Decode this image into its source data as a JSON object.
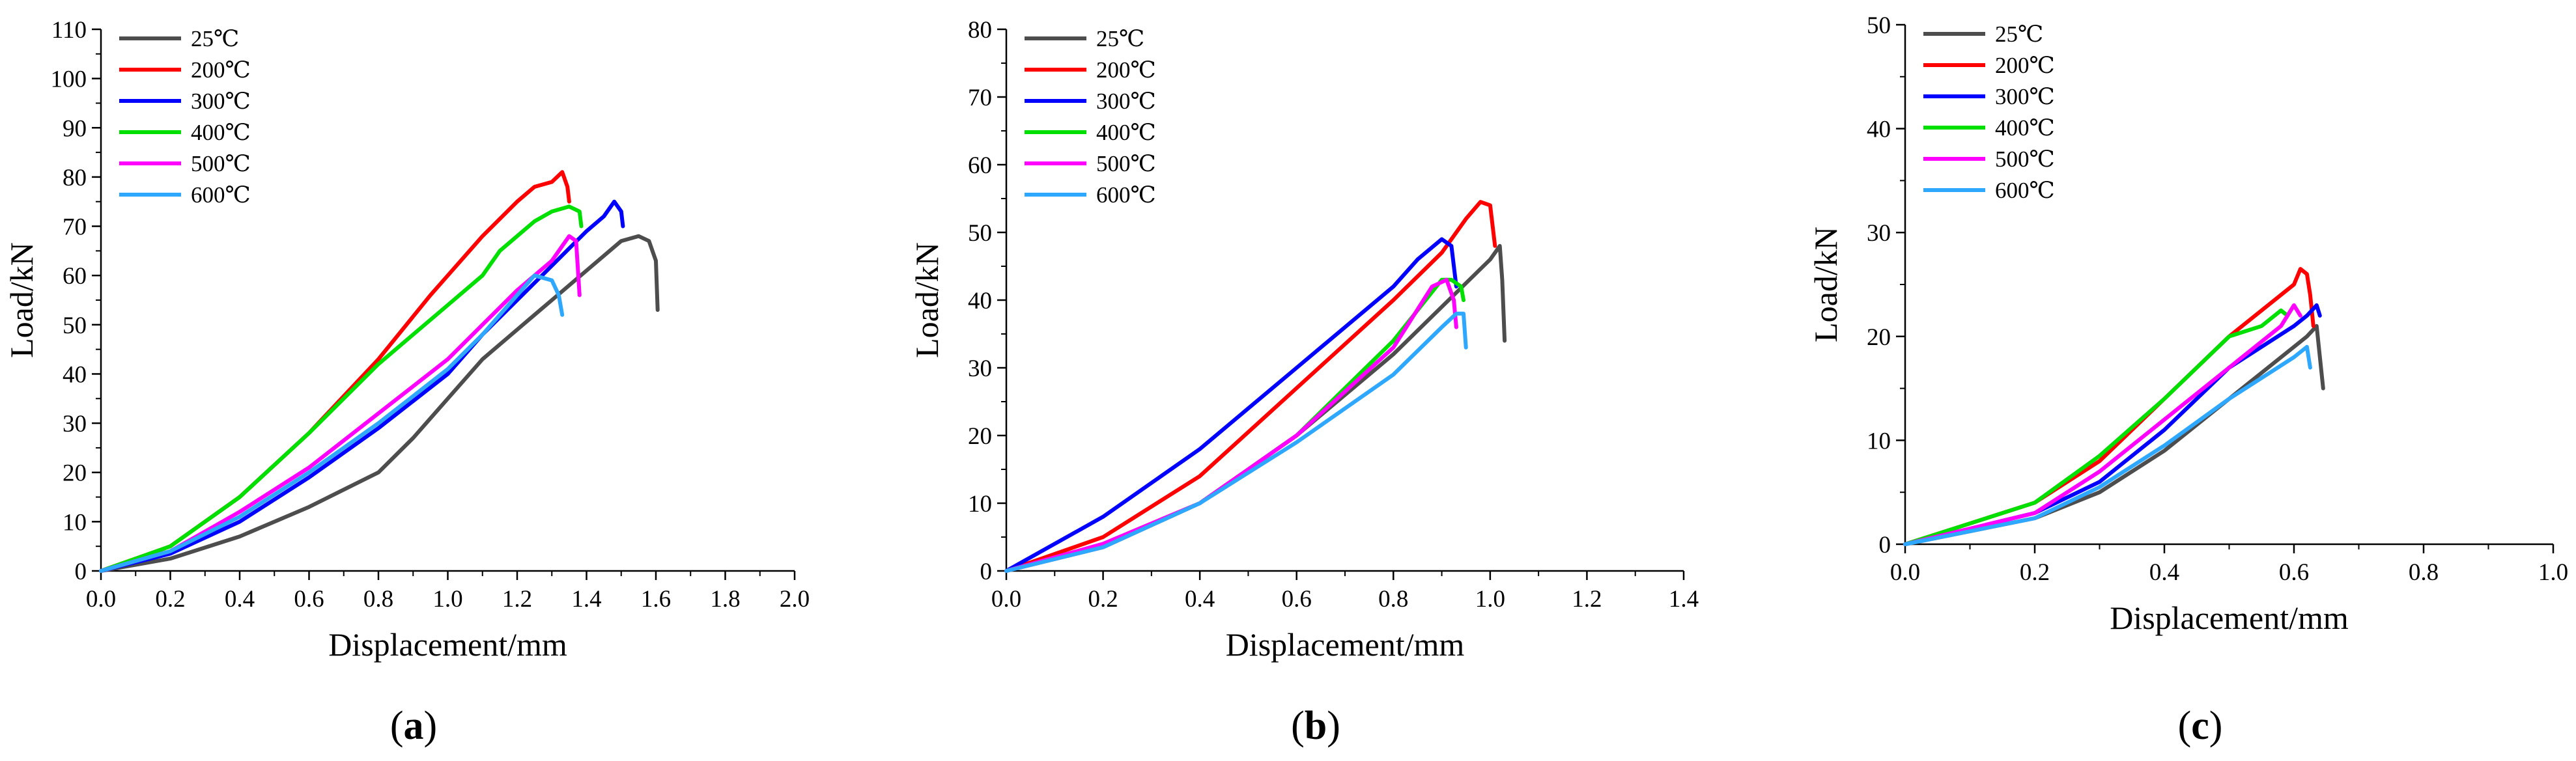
{
  "chart_data": [
    {
      "type": "line",
      "panel_label": "a",
      "xlabel": "Displacement/mm",
      "ylabel": "Load/kN",
      "xlim": [
        0,
        2.0
      ],
      "ylim": [
        0,
        110
      ],
      "xticks": [
        "0.0",
        "0.2",
        "0.4",
        "0.6",
        "0.8",
        "1.0",
        "1.2",
        "1.4",
        "1.6",
        "1.8",
        "2.0"
      ],
      "yticks": [
        "0",
        "10",
        "20",
        "30",
        "40",
        "50",
        "60",
        "70",
        "80",
        "90",
        "100",
        "110"
      ],
      "legend_position": "top-left",
      "series": [
        {
          "name": "25℃",
          "color": "#4d4d4d",
          "x": [
            0,
            0.2,
            0.4,
            0.6,
            0.8,
            0.9,
            1.0,
            1.1,
            1.2,
            1.25,
            1.3,
            1.4,
            1.5,
            1.55,
            1.58,
            1.6,
            1.605
          ],
          "y": [
            0,
            2.5,
            7,
            13,
            20,
            27,
            35,
            43,
            49,
            52,
            55,
            61,
            67,
            68,
            67,
            63,
            53
          ]
        },
        {
          "name": "200℃",
          "color": "#ff0000",
          "x": [
            0,
            0.2,
            0.4,
            0.6,
            0.8,
            0.95,
            1.0,
            1.1,
            1.2,
            1.25,
            1.3,
            1.33,
            1.345,
            1.35
          ],
          "y": [
            0,
            5,
            15,
            28,
            43,
            56,
            60,
            68,
            75,
            78,
            79,
            81,
            78,
            75
          ]
        },
        {
          "name": "300℃",
          "color": "#0000ff",
          "x": [
            0,
            0.2,
            0.4,
            0.6,
            0.8,
            1.0,
            1.1,
            1.2,
            1.3,
            1.4,
            1.45,
            1.48,
            1.5,
            1.505
          ],
          "y": [
            0,
            3.5,
            10,
            19,
            29,
            40,
            48,
            55,
            62,
            69,
            72,
            75,
            73,
            70
          ]
        },
        {
          "name": "400℃",
          "color": "#00e000",
          "x": [
            0,
            0.2,
            0.4,
            0.6,
            0.8,
            1.0,
            1.1,
            1.15,
            1.2,
            1.25,
            1.3,
            1.35,
            1.38,
            1.385
          ],
          "y": [
            0,
            5,
            15,
            28,
            42,
            54,
            60,
            65,
            68,
            71,
            73,
            74,
            73,
            70
          ]
        },
        {
          "name": "500℃",
          "color": "#ff00ff",
          "x": [
            0,
            0.2,
            0.4,
            0.6,
            0.8,
            1.0,
            1.1,
            1.2,
            1.3,
            1.35,
            1.37,
            1.38
          ],
          "y": [
            0,
            4,
            12,
            21,
            32,
            43,
            50,
            57,
            63,
            68,
            67,
            56
          ]
        },
        {
          "name": "600℃",
          "color": "#2ea8ff",
          "x": [
            0,
            0.2,
            0.4,
            0.6,
            0.8,
            1.0,
            1.1,
            1.2,
            1.25,
            1.3,
            1.32,
            1.33
          ],
          "y": [
            0,
            4,
            11,
            20,
            30,
            41,
            48,
            56,
            60,
            59,
            56,
            52
          ]
        }
      ]
    },
    {
      "type": "line",
      "panel_label": "b",
      "xlabel": "Displacement/mm",
      "ylabel": "Load/kN",
      "xlim": [
        0,
        1.4
      ],
      "ylim": [
        0,
        80
      ],
      "xticks": [
        "0.0",
        "0.2",
        "0.4",
        "0.6",
        "0.8",
        "1.0",
        "1.2",
        "1.4"
      ],
      "yticks": [
        "0",
        "10",
        "20",
        "30",
        "40",
        "50",
        "60",
        "70",
        "80"
      ],
      "legend_position": "top-left",
      "series": [
        {
          "name": "25℃",
          "color": "#4d4d4d",
          "x": [
            0,
            0.2,
            0.4,
            0.6,
            0.8,
            0.9,
            1.0,
            1.02,
            1.025,
            1.03
          ],
          "y": [
            0,
            3.5,
            10,
            20,
            32,
            39,
            46,
            48,
            43,
            34
          ]
        },
        {
          "name": "200℃",
          "color": "#ff0000",
          "x": [
            0,
            0.2,
            0.4,
            0.6,
            0.8,
            0.9,
            0.95,
            0.98,
            1.0,
            1.01
          ],
          "y": [
            0,
            5,
            14,
            27,
            40,
            47,
            52,
            54.5,
            54,
            48
          ]
        },
        {
          "name": "300℃",
          "color": "#0000ff",
          "x": [
            0,
            0.2,
            0.4,
            0.6,
            0.8,
            0.85,
            0.9,
            0.92,
            0.93
          ],
          "y": [
            0,
            8,
            18,
            30,
            42,
            46,
            49,
            48,
            42
          ]
        },
        {
          "name": "400℃",
          "color": "#00e000",
          "x": [
            0,
            0.2,
            0.4,
            0.6,
            0.8,
            0.9,
            0.92,
            0.94,
            0.945
          ],
          "y": [
            0,
            4,
            10,
            20,
            34,
            43,
            43,
            42,
            40
          ]
        },
        {
          "name": "500℃",
          "color": "#ff00ff",
          "x": [
            0,
            0.2,
            0.4,
            0.6,
            0.8,
            0.88,
            0.91,
            0.925,
            0.93
          ],
          "y": [
            0,
            4,
            10,
            20,
            33,
            42,
            43,
            40,
            36
          ]
        },
        {
          "name": "600℃",
          "color": "#2ea8ff",
          "x": [
            0,
            0.2,
            0.4,
            0.6,
            0.8,
            0.9,
            0.93,
            0.945,
            0.95
          ],
          "y": [
            0,
            3.5,
            10,
            19,
            29,
            36,
            38,
            38,
            33
          ]
        }
      ]
    },
    {
      "type": "line",
      "panel_label": "c",
      "xlabel": "Displacement/mm",
      "ylabel": "Load/kN",
      "xlim": [
        0,
        1.0
      ],
      "ylim": [
        0,
        50
      ],
      "xticks": [
        "0.0",
        "0.2",
        "0.4",
        "0.6",
        "0.8",
        "1.0"
      ],
      "yticks": [
        "0",
        "10",
        "20",
        "30",
        "40",
        "50"
      ],
      "legend_position": "top-left",
      "series": [
        {
          "name": "25℃",
          "color": "#4d4d4d",
          "x": [
            0,
            0.2,
            0.3,
            0.4,
            0.5,
            0.6,
            0.62,
            0.635,
            0.64,
            0.645
          ],
          "y": [
            0,
            2.5,
            5,
            9,
            14,
            19,
            20,
            21,
            18,
            15
          ]
        },
        {
          "name": "200℃",
          "color": "#ff0000",
          "x": [
            0,
            0.2,
            0.3,
            0.4,
            0.5,
            0.6,
            0.61,
            0.62,
            0.625,
            0.63
          ],
          "y": [
            0,
            4,
            8,
            14,
            20,
            25,
            26.5,
            26,
            24,
            21
          ]
        },
        {
          "name": "300℃",
          "color": "#0000ff",
          "x": [
            0,
            0.2,
            0.3,
            0.4,
            0.5,
            0.6,
            0.62,
            0.635,
            0.64
          ],
          "y": [
            0,
            3,
            6,
            11,
            17,
            21,
            22,
            23,
            22
          ]
        },
        {
          "name": "400℃",
          "color": "#00e000",
          "x": [
            0,
            0.2,
            0.3,
            0.4,
            0.5,
            0.55,
            0.58,
            0.59
          ],
          "y": [
            0,
            4,
            8.5,
            14,
            20,
            21,
            22.5,
            22
          ]
        },
        {
          "name": "500℃",
          "color": "#ff00ff",
          "x": [
            0,
            0.2,
            0.3,
            0.4,
            0.5,
            0.58,
            0.6,
            0.61
          ],
          "y": [
            0,
            3,
            7,
            12,
            17,
            21,
            23,
            22
          ]
        },
        {
          "name": "600℃",
          "color": "#2ea8ff",
          "x": [
            0,
            0.2,
            0.3,
            0.4,
            0.5,
            0.6,
            0.62,
            0.625
          ],
          "y": [
            0,
            2.5,
            5.5,
            9.5,
            14,
            18,
            19,
            17
          ]
        }
      ]
    }
  ]
}
